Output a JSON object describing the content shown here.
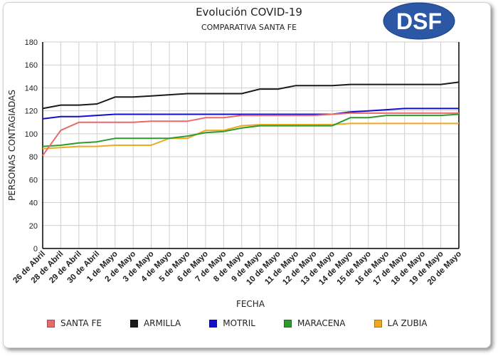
{
  "logo": {
    "text": "DSF",
    "color": "#2b57a5"
  },
  "chart_data": {
    "type": "line",
    "title": "Evolución COVID-19",
    "subtitle": "COMPARATIVA SANTA FE",
    "xlabel": "FECHA",
    "ylabel": "PERSONAS CONTAGIADAS",
    "ylim": [
      0,
      180
    ],
    "yticks": [
      0,
      20,
      40,
      60,
      80,
      100,
      120,
      140,
      160,
      180
    ],
    "grid": true,
    "legend_position": "bottom",
    "categories": [
      "26 de Abril",
      "28 de Abril",
      "29 de Abril",
      "30 de Abril",
      "1 de Mayo",
      "2 de Mayo",
      "3 de Mayo",
      "4 de Mayo",
      "5 de Mayo",
      "6 de Mayo",
      "7 de Mayo",
      "8 de Mayo",
      "9 de Mayo",
      "10 de Mayo",
      "11 de Mayo",
      "12 de Mayo",
      "13 de Mayo",
      "14 de Mayo",
      "15 de Mayo",
      "16 de Mayo",
      "17 de Mayo",
      "18 de Mayo",
      "19 de Mayo",
      "20 de Mayo"
    ],
    "series": [
      {
        "name": "SANTA FE",
        "color": "#e86a6a",
        "values": [
          81,
          103,
          110,
          110,
          110,
          110,
          111,
          111,
          111,
          114,
          114,
          116,
          116,
          116,
          116,
          116,
          117,
          118,
          118,
          118,
          118,
          118,
          118,
          118
        ]
      },
      {
        "name": "ARMILLA",
        "color": "#1a1a1a",
        "values": [
          122,
          125,
          125,
          126,
          132,
          132,
          133,
          134,
          135,
          135,
          135,
          135,
          139,
          139,
          142,
          142,
          142,
          143,
          143,
          143,
          143,
          143,
          143,
          145
        ]
      },
      {
        "name": "MOTRIL",
        "color": "#1010cc",
        "values": [
          113,
          115,
          115,
          116,
          117,
          117,
          117,
          117,
          117,
          117,
          117,
          117,
          117,
          117,
          117,
          117,
          117,
          119,
          120,
          121,
          122,
          122,
          122,
          122
        ]
      },
      {
        "name": "MARACENA",
        "color": "#2e9a2e",
        "values": [
          89,
          90,
          92,
          93,
          96,
          96,
          96,
          96,
          98,
          101,
          102,
          105,
          107,
          107,
          107,
          107,
          107,
          114,
          114,
          116,
          116,
          116,
          116,
          117
        ]
      },
      {
        "name": "LA ZUBIA",
        "color": "#f0a820",
        "values": [
          87,
          88,
          89,
          89,
          90,
          90,
          90,
          96,
          96,
          103,
          103,
          107,
          108,
          108,
          108,
          108,
          108,
          109,
          109,
          109,
          109,
          109,
          109,
          109
        ]
      }
    ]
  }
}
